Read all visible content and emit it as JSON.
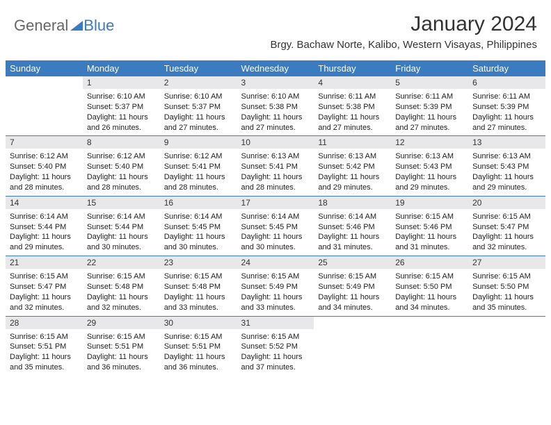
{
  "brand": {
    "part1": "General",
    "part2": "Blue"
  },
  "title": "January 2024",
  "location": "Brgy. Bachaw Norte, Kalibo, Western Visayas, Philippines",
  "colors": {
    "header_bg": "#3b7bbf",
    "daynum_bg": "#e8e8ea",
    "text": "#222222",
    "title_text": "#333333"
  },
  "weekdays": [
    "Sunday",
    "Monday",
    "Tuesday",
    "Wednesday",
    "Thursday",
    "Friday",
    "Saturday"
  ],
  "start_offset": 1,
  "days": [
    {
      "n": 1,
      "sr": "6:10 AM",
      "ss": "5:37 PM",
      "dl": "11 hours and 26 minutes."
    },
    {
      "n": 2,
      "sr": "6:10 AM",
      "ss": "5:37 PM",
      "dl": "11 hours and 27 minutes."
    },
    {
      "n": 3,
      "sr": "6:10 AM",
      "ss": "5:38 PM",
      "dl": "11 hours and 27 minutes."
    },
    {
      "n": 4,
      "sr": "6:11 AM",
      "ss": "5:38 PM",
      "dl": "11 hours and 27 minutes."
    },
    {
      "n": 5,
      "sr": "6:11 AM",
      "ss": "5:39 PM",
      "dl": "11 hours and 27 minutes."
    },
    {
      "n": 6,
      "sr": "6:11 AM",
      "ss": "5:39 PM",
      "dl": "11 hours and 27 minutes."
    },
    {
      "n": 7,
      "sr": "6:12 AM",
      "ss": "5:40 PM",
      "dl": "11 hours and 28 minutes."
    },
    {
      "n": 8,
      "sr": "6:12 AM",
      "ss": "5:40 PM",
      "dl": "11 hours and 28 minutes."
    },
    {
      "n": 9,
      "sr": "6:12 AM",
      "ss": "5:41 PM",
      "dl": "11 hours and 28 minutes."
    },
    {
      "n": 10,
      "sr": "6:13 AM",
      "ss": "5:41 PM",
      "dl": "11 hours and 28 minutes."
    },
    {
      "n": 11,
      "sr": "6:13 AM",
      "ss": "5:42 PM",
      "dl": "11 hours and 29 minutes."
    },
    {
      "n": 12,
      "sr": "6:13 AM",
      "ss": "5:43 PM",
      "dl": "11 hours and 29 minutes."
    },
    {
      "n": 13,
      "sr": "6:13 AM",
      "ss": "5:43 PM",
      "dl": "11 hours and 29 minutes."
    },
    {
      "n": 14,
      "sr": "6:14 AM",
      "ss": "5:44 PM",
      "dl": "11 hours and 29 minutes."
    },
    {
      "n": 15,
      "sr": "6:14 AM",
      "ss": "5:44 PM",
      "dl": "11 hours and 30 minutes."
    },
    {
      "n": 16,
      "sr": "6:14 AM",
      "ss": "5:45 PM",
      "dl": "11 hours and 30 minutes."
    },
    {
      "n": 17,
      "sr": "6:14 AM",
      "ss": "5:45 PM",
      "dl": "11 hours and 30 minutes."
    },
    {
      "n": 18,
      "sr": "6:14 AM",
      "ss": "5:46 PM",
      "dl": "11 hours and 31 minutes."
    },
    {
      "n": 19,
      "sr": "6:15 AM",
      "ss": "5:46 PM",
      "dl": "11 hours and 31 minutes."
    },
    {
      "n": 20,
      "sr": "6:15 AM",
      "ss": "5:47 PM",
      "dl": "11 hours and 32 minutes."
    },
    {
      "n": 21,
      "sr": "6:15 AM",
      "ss": "5:47 PM",
      "dl": "11 hours and 32 minutes."
    },
    {
      "n": 22,
      "sr": "6:15 AM",
      "ss": "5:48 PM",
      "dl": "11 hours and 32 minutes."
    },
    {
      "n": 23,
      "sr": "6:15 AM",
      "ss": "5:48 PM",
      "dl": "11 hours and 33 minutes."
    },
    {
      "n": 24,
      "sr": "6:15 AM",
      "ss": "5:49 PM",
      "dl": "11 hours and 33 minutes."
    },
    {
      "n": 25,
      "sr": "6:15 AM",
      "ss": "5:49 PM",
      "dl": "11 hours and 34 minutes."
    },
    {
      "n": 26,
      "sr": "6:15 AM",
      "ss": "5:50 PM",
      "dl": "11 hours and 34 minutes."
    },
    {
      "n": 27,
      "sr": "6:15 AM",
      "ss": "5:50 PM",
      "dl": "11 hours and 35 minutes."
    },
    {
      "n": 28,
      "sr": "6:15 AM",
      "ss": "5:51 PM",
      "dl": "11 hours and 35 minutes."
    },
    {
      "n": 29,
      "sr": "6:15 AM",
      "ss": "5:51 PM",
      "dl": "11 hours and 36 minutes."
    },
    {
      "n": 30,
      "sr": "6:15 AM",
      "ss": "5:51 PM",
      "dl": "11 hours and 36 minutes."
    },
    {
      "n": 31,
      "sr": "6:15 AM",
      "ss": "5:52 PM",
      "dl": "11 hours and 37 minutes."
    }
  ],
  "labels": {
    "sunrise": "Sunrise:",
    "sunset": "Sunset:",
    "daylight": "Daylight:"
  }
}
